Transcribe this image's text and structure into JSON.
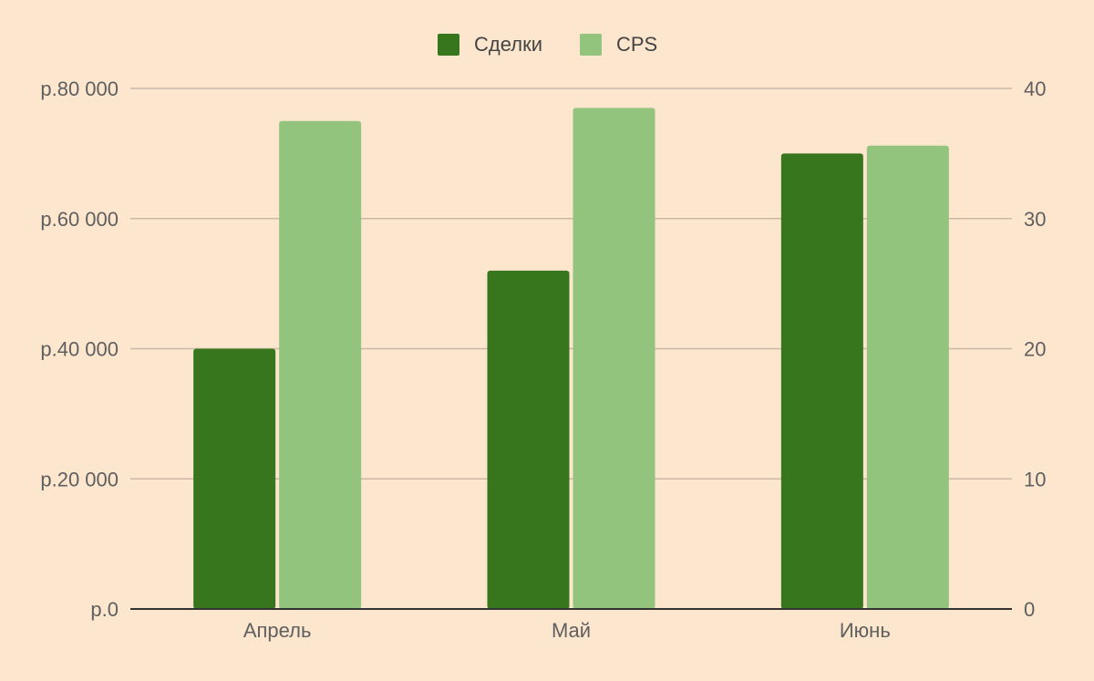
{
  "chart_data": {
    "type": "bar",
    "categories": [
      "Апрель",
      "Май",
      "Июнь"
    ],
    "series": [
      {
        "name": "Сделки",
        "axis": "left",
        "color": "#38761d",
        "values": [
          40000,
          52000,
          70000
        ]
      },
      {
        "name": "CPS",
        "axis": "right",
        "color": "#93c47d",
        "values": [
          37.5,
          38.5,
          35.6
        ]
      }
    ],
    "y_left": {
      "ylim": [
        0,
        80000
      ],
      "ticks": [
        0,
        20000,
        40000,
        60000,
        80000
      ],
      "tick_labels": [
        "р.0",
        "р.20 000",
        "р.40 000",
        "р.60 000",
        "р.80 000"
      ]
    },
    "y_right": {
      "ylim": [
        0,
        40
      ],
      "ticks": [
        0,
        10,
        20,
        30,
        40
      ],
      "tick_labels": [
        "0",
        "10",
        "20",
        "30",
        "40"
      ]
    },
    "grid": true,
    "legend": {
      "position": "top-center"
    },
    "background": "#fde6ce",
    "gridline_color": "#c9b9a6",
    "baseline_color": "#333333"
  }
}
